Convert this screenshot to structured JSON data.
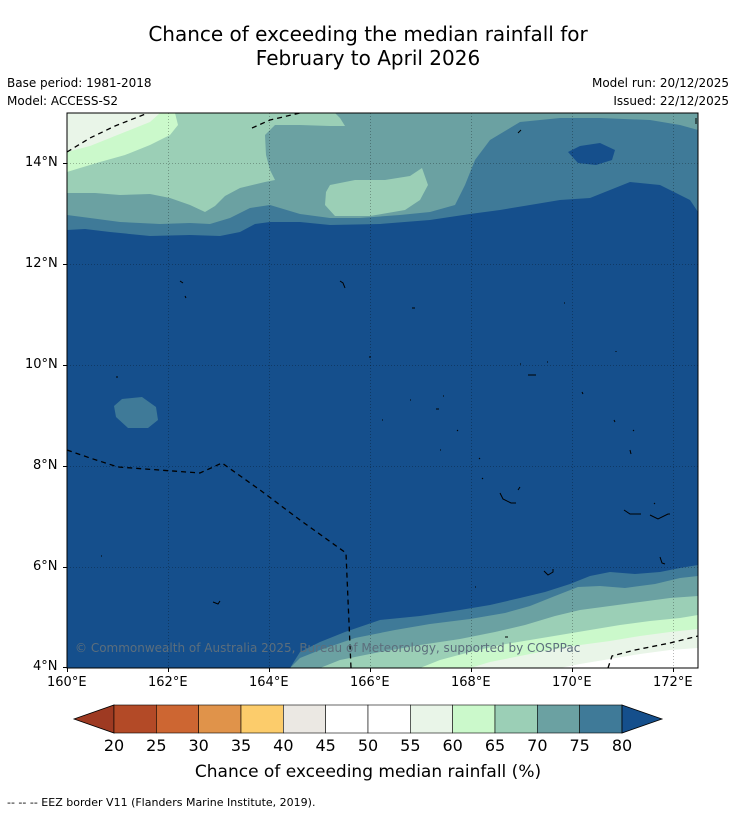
{
  "title": {
    "line1": "Chance of exceeding the median rainfall for",
    "line2": "February to April 2026"
  },
  "meta": {
    "base_period": "Base period: 1981-2018",
    "model": "Model: ACCESS-S2",
    "model_run": "Model run: 20/12/2025",
    "issued": "Issued: 22/12/2025"
  },
  "map": {
    "lon_range": [
      160,
      172.5
    ],
    "lat_range": [
      4,
      15
    ],
    "lat_ticks": [
      "4°N",
      "6°N",
      "8°N",
      "10°N",
      "12°N",
      "14°N"
    ],
    "lon_ticks": [
      "160°E",
      "162°E",
      "164°E",
      "166°E",
      "168°E",
      "170°E",
      "172°E"
    ],
    "copyright": "© Commonwealth of Australia 2025, Bureau of Meteorology, supported by COSPPac"
  },
  "colorbar": {
    "ticks": [
      "20",
      "25",
      "30",
      "35",
      "40",
      "45",
      "50",
      "55",
      "60",
      "65",
      "70",
      "75",
      "80"
    ],
    "colors": [
      "#b34a27",
      "#cd6632",
      "#e0934a",
      "#fccc6b",
      "#ebe8e3",
      "#ffffff",
      "#ffffff",
      "#e9f5e8",
      "#cbf9cb",
      "#9bcfb6",
      "#6ba1a2",
      "#3f7a98"
    ],
    "low_color": "#9e3a22",
    "high_color": "#154f8c",
    "label": "Chance of exceeding median rainfall (%)"
  },
  "footer": {
    "legend": "--  --  -- EEZ border V11 (Flanders Marine Institute, 2019)."
  }
}
